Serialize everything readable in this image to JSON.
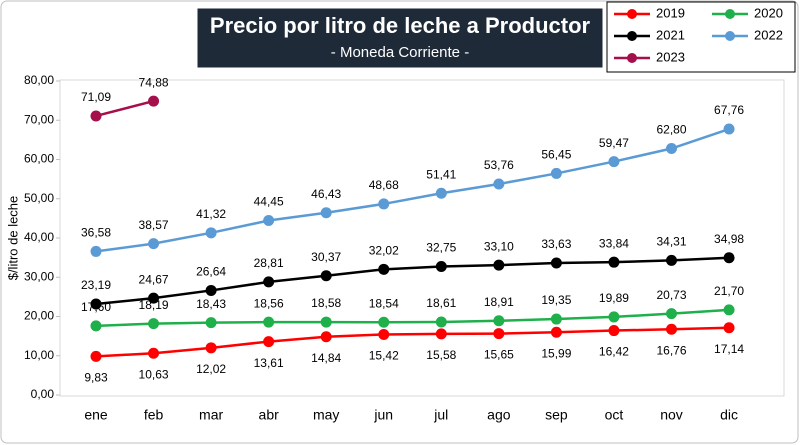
{
  "chart_data": {
    "type": "line",
    "title": "Precio por litro de leche a Productor",
    "subtitle": "- Moneda Corriente -",
    "y_label": "$/litro de leche",
    "categories": [
      "ene",
      "feb",
      "mar",
      "abr",
      "may",
      "jun",
      "jul",
      "ago",
      "sep",
      "oct",
      "nov",
      "dic"
    ],
    "ylim": [
      0,
      80
    ],
    "yticks": [
      {
        "value": 0,
        "label": "0,00"
      },
      {
        "value": 10,
        "label": "10,00"
      },
      {
        "value": 20,
        "label": "20,00"
      },
      {
        "value": 30,
        "label": "30,00"
      },
      {
        "value": 40,
        "label": "40,00"
      },
      {
        "value": 50,
        "label": "50,00"
      },
      {
        "value": 60,
        "label": "60,00"
      },
      {
        "value": 70,
        "label": "70,00"
      },
      {
        "value": 80,
        "label": "80,00"
      }
    ],
    "grid": false,
    "legend": "top-right",
    "series": [
      {
        "name": "2019",
        "color": "#ff0000",
        "values": [
          9.83,
          10.63,
          12.02,
          13.61,
          14.84,
          15.42,
          15.58,
          15.65,
          15.99,
          16.42,
          16.76,
          17.14
        ],
        "value_labels": [
          "9,83",
          "10,63",
          "12,02",
          "13,61",
          "14,84",
          "15,42",
          "15,58",
          "15,65",
          "15,99",
          "16,42",
          "16,76",
          "17,14"
        ]
      },
      {
        "name": "2020",
        "color": "#1fb04c",
        "values": [
          17.6,
          18.19,
          18.43,
          18.56,
          18.58,
          18.54,
          18.61,
          18.91,
          19.35,
          19.89,
          20.73,
          21.7
        ],
        "value_labels": [
          "17,60",
          "18,19",
          "18,43",
          "18,56",
          "18,58",
          "18,54",
          "18,61",
          "18,91",
          "19,35",
          "19,89",
          "20,73",
          "21,70"
        ]
      },
      {
        "name": "2021",
        "color": "#000000",
        "values": [
          23.19,
          24.67,
          26.64,
          28.81,
          30.37,
          32.02,
          32.75,
          33.1,
          33.63,
          33.84,
          34.31,
          34.98
        ],
        "value_labels": [
          "23,19",
          "24,67",
          "26,64",
          "28,81",
          "30,37",
          "32,02",
          "32,75",
          "33,10",
          "33,63",
          "33,84",
          "34,31",
          "34,98"
        ]
      },
      {
        "name": "2022",
        "color": "#5b9bd5",
        "values": [
          36.58,
          38.57,
          41.32,
          44.45,
          46.43,
          48.68,
          51.41,
          53.76,
          56.45,
          59.47,
          62.8,
          67.76
        ],
        "value_labels": [
          "36,58",
          "38,57",
          "41,32",
          "44,45",
          "46,43",
          "48,68",
          "51,41",
          "53,76",
          "56,45",
          "59,47",
          "62,80",
          "67,76"
        ]
      },
      {
        "name": "2023",
        "color": "#a50f4a",
        "values": [
          71.09,
          74.88,
          null,
          null,
          null,
          null,
          null,
          null,
          null,
          null,
          null,
          null
        ],
        "value_labels": [
          "71,09",
          "74,88",
          null,
          null,
          null,
          null,
          null,
          null,
          null,
          null,
          null,
          null
        ]
      }
    ]
  }
}
